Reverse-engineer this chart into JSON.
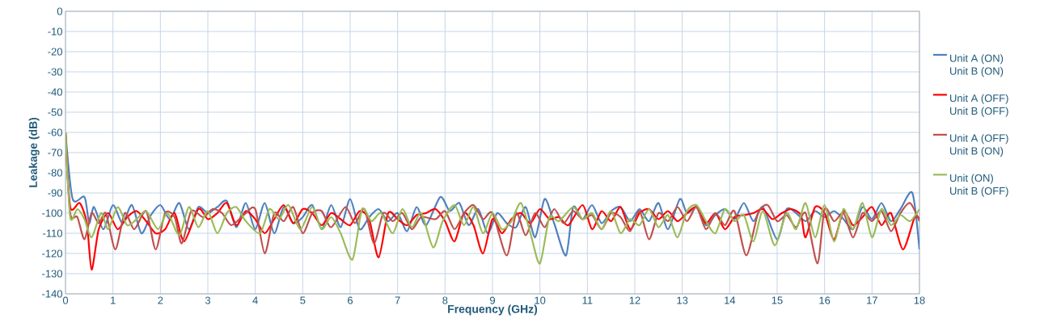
{
  "chart_data": {
    "type": "line",
    "xlabel": "Frequency (GHz)",
    "ylabel": "Leakage (dB)",
    "xlim": [
      0,
      18
    ],
    "xticks": [
      0,
      1,
      2,
      3,
      4,
      5,
      6,
      7,
      8,
      9,
      10,
      11,
      12,
      13,
      14,
      15,
      16,
      17,
      18
    ],
    "ylim": [
      -140,
      0
    ],
    "yticks": [
      -140,
      -130,
      -120,
      -110,
      -100,
      -90,
      -80,
      -70,
      -60,
      -50,
      -40,
      -30,
      -20,
      -10,
      0
    ],
    "grid": true,
    "legend": "right",
    "marker": "none",
    "line_style": "solid",
    "series": [
      {
        "name": "Unit A (ON) Unit B (ON)",
        "color": "#4f81bd",
        "x": [
          0,
          0.15,
          0.4,
          0.5,
          0.6,
          0.8,
          1.0,
          1.2,
          1.4,
          1.6,
          1.8,
          2.0,
          2.2,
          2.4,
          2.6,
          2.8,
          3.0,
          3.2,
          3.4,
          3.6,
          3.8,
          4.0,
          4.2,
          4.4,
          4.6,
          4.8,
          5.0,
          5.2,
          5.4,
          5.6,
          5.8,
          6.0,
          6.2,
          6.4,
          6.6,
          6.8,
          7.0,
          7.2,
          7.4,
          7.6,
          7.9,
          8.1,
          8.3,
          8.5,
          8.7,
          8.9,
          9.1,
          9.3,
          9.5,
          9.7,
          9.9,
          10.1,
          10.3,
          10.55,
          10.7,
          10.9,
          11.1,
          11.3,
          11.5,
          11.7,
          11.9,
          12.1,
          12.3,
          12.5,
          12.7,
          12.95,
          13.1,
          13.3,
          13.5,
          13.7,
          13.9,
          14.1,
          14.3,
          14.5,
          14.7,
          15.0,
          15.2,
          15.4,
          15.6,
          15.8,
          16.0,
          16.2,
          16.4,
          16.6,
          16.8,
          17.0,
          17.2,
          17.4,
          17.6,
          17.85,
          18.0
        ],
        "values": [
          -60,
          -93,
          -92,
          -105,
          -97,
          -108,
          -96,
          -105,
          -96,
          -110,
          -101,
          -96,
          -103,
          -95,
          -108,
          -97,
          -100,
          -97,
          -94,
          -107,
          -95,
          -108,
          -95,
          -110,
          -97,
          -105,
          -102,
          -96,
          -108,
          -96,
          -107,
          -93,
          -108,
          -102,
          -98,
          -104,
          -100,
          -109,
          -97,
          -106,
          -92,
          -99,
          -95,
          -106,
          -98,
          -110,
          -100,
          -105,
          -107,
          -97,
          -112,
          -93,
          -105,
          -121,
          -97,
          -103,
          -96,
          -105,
          -99,
          -97,
          -104,
          -98,
          -104,
          -95,
          -108,
          -93,
          -100,
          -97,
          -106,
          -101,
          -98,
          -103,
          -95,
          -104,
          -97,
          -113,
          -98,
          -100,
          -104,
          -99,
          -102,
          -99,
          -103,
          -108,
          -97,
          -103,
          -95,
          -104,
          -98,
          -90,
          -118
        ]
      },
      {
        "name": "Unit A (OFF) Unit B (OFF)",
        "color": "#ff0000",
        "x": [
          0,
          0.1,
          0.3,
          0.45,
          0.55,
          0.7,
          0.9,
          1.1,
          1.3,
          1.5,
          1.7,
          1.9,
          2.1,
          2.3,
          2.5,
          2.8,
          3.0,
          3.2,
          3.4,
          3.6,
          3.8,
          4.0,
          4.2,
          4.4,
          4.6,
          4.8,
          5.0,
          5.2,
          5.4,
          5.6,
          5.8,
          6.0,
          6.2,
          6.4,
          6.6,
          6.8,
          7.0,
          7.2,
          7.4,
          7.6,
          7.8,
          8.0,
          8.2,
          8.4,
          8.6,
          8.8,
          9.0,
          9.2,
          9.4,
          9.6,
          9.8,
          10.0,
          10.2,
          10.4,
          10.6,
          10.9,
          11.1,
          11.3,
          11.5,
          11.7,
          11.9,
          12.1,
          12.3,
          12.5,
          12.7,
          12.9,
          13.1,
          13.3,
          13.5,
          13.7,
          13.9,
          14.1,
          14.3,
          14.5,
          14.7,
          14.9,
          15.1,
          15.3,
          15.5,
          15.6,
          15.8,
          16.0,
          16.2,
          16.4,
          16.6,
          16.8,
          17.0,
          17.2,
          17.4,
          17.65,
          17.9,
          18.0
        ],
        "values": [
          -60,
          -97,
          -95,
          -105,
          -128,
          -108,
          -100,
          -108,
          -102,
          -99,
          -104,
          -110,
          -108,
          -100,
          -114,
          -98,
          -103,
          -100,
          -95,
          -106,
          -99,
          -103,
          -110,
          -103,
          -96,
          -105,
          -98,
          -100,
          -106,
          -100,
          -103,
          -106,
          -99,
          -103,
          -122,
          -100,
          -103,
          -106,
          -101,
          -100,
          -98,
          -104,
          -114,
          -100,
          -106,
          -120,
          -103,
          -110,
          -103,
          -100,
          -105,
          -98,
          -103,
          -102,
          -106,
          -96,
          -108,
          -99,
          -104,
          -97,
          -108,
          -100,
          -98,
          -103,
          -99,
          -104,
          -100,
          -97,
          -105,
          -100,
          -108,
          -102,
          -101,
          -100,
          -98,
          -103,
          -100,
          -98,
          -101,
          -112,
          -97,
          -100,
          -113,
          -99,
          -106,
          -102,
          -97,
          -106,
          -100,
          -118,
          -102,
          -103
        ]
      },
      {
        "name": "Unit A (OFF) Unit B (ON)",
        "color": "#c0504d",
        "x": [
          0,
          0.1,
          0.25,
          0.4,
          0.55,
          0.7,
          0.85,
          1.05,
          1.25,
          1.45,
          1.7,
          1.9,
          2.1,
          2.3,
          2.45,
          2.65,
          2.9,
          3.1,
          3.3,
          3.5,
          3.8,
          4.0,
          4.2,
          4.4,
          4.6,
          4.8,
          5.0,
          5.2,
          5.4,
          5.6,
          5.9,
          6.1,
          6.3,
          6.5,
          6.7,
          6.9,
          7.1,
          7.3,
          7.5,
          7.8,
          8.0,
          8.2,
          8.4,
          8.6,
          8.8,
          9.0,
          9.3,
          9.5,
          9.7,
          9.9,
          10.1,
          10.3,
          10.5,
          10.7,
          10.9,
          11.1,
          11.3,
          11.5,
          11.7,
          11.9,
          12.1,
          12.3,
          12.5,
          12.7,
          12.9,
          13.1,
          13.3,
          13.5,
          13.7,
          13.9,
          14.1,
          14.35,
          14.6,
          14.8,
          15.0,
          15.2,
          15.4,
          15.6,
          15.85,
          16.0,
          16.2,
          16.4,
          16.6,
          16.8,
          17.0,
          17.2,
          17.4,
          17.6,
          17.8,
          18.0
        ],
        "values": [
          -60,
          -100,
          -102,
          -113,
          -100,
          -105,
          -100,
          -118,
          -100,
          -108,
          -99,
          -118,
          -100,
          -102,
          -115,
          -99,
          -102,
          -98,
          -100,
          -106,
          -100,
          -98,
          -120,
          -100,
          -104,
          -97,
          -110,
          -100,
          -99,
          -107,
          -97,
          -105,
          -98,
          -115,
          -100,
          -104,
          -100,
          -108,
          -102,
          -103,
          -99,
          -108,
          -100,
          -96,
          -103,
          -100,
          -121,
          -100,
          -111,
          -100,
          -107,
          -98,
          -105,
          -99,
          -103,
          -101,
          -108,
          -100,
          -102,
          -109,
          -99,
          -113,
          -100,
          -104,
          -97,
          -104,
          -97,
          -108,
          -100,
          -106,
          -99,
          -121,
          -100,
          -96,
          -104,
          -101,
          -107,
          -100,
          -125,
          -98,
          -104,
          -100,
          -112,
          -100,
          -104,
          -99,
          -109,
          -100,
          -95,
          -104
        ]
      },
      {
        "name": "Unit (ON) Unit B (OFF)",
        "color": "#9bbb59",
        "x": [
          0,
          0.1,
          0.25,
          0.4,
          0.55,
          0.75,
          0.9,
          1.1,
          1.3,
          1.5,
          1.7,
          1.95,
          2.15,
          2.4,
          2.6,
          2.8,
          3.0,
          3.2,
          3.4,
          3.6,
          3.8,
          4.1,
          4.3,
          4.5,
          4.7,
          4.95,
          5.2,
          5.4,
          5.6,
          5.8,
          6.05,
          6.25,
          6.45,
          6.65,
          6.9,
          7.1,
          7.3,
          7.5,
          7.75,
          7.95,
          8.2,
          8.4,
          8.6,
          8.8,
          9.0,
          9.2,
          9.4,
          9.6,
          9.8,
          10.0,
          10.2,
          10.4,
          10.7,
          10.9,
          11.1,
          11.3,
          11.5,
          11.7,
          11.9,
          12.1,
          12.3,
          12.5,
          12.7,
          12.9,
          13.1,
          13.3,
          13.5,
          13.7,
          13.9,
          14.1,
          14.3,
          14.5,
          14.7,
          14.95,
          15.2,
          15.4,
          15.6,
          15.8,
          16.0,
          16.2,
          16.4,
          16.6,
          16.8,
          17.0,
          17.2,
          17.4,
          17.6,
          17.8,
          18.0
        ],
        "values": [
          -60,
          -102,
          -98,
          -103,
          -112,
          -100,
          -108,
          -97,
          -106,
          -103,
          -99,
          -108,
          -100,
          -111,
          -97,
          -107,
          -99,
          -110,
          -100,
          -97,
          -104,
          -110,
          -98,
          -103,
          -96,
          -108,
          -97,
          -108,
          -102,
          -110,
          -123,
          -98,
          -104,
          -100,
          -110,
          -98,
          -107,
          -100,
          -117,
          -104,
          -96,
          -106,
          -97,
          -110,
          -100,
          -108,
          -104,
          -95,
          -110,
          -125,
          -102,
          -104,
          -97,
          -103,
          -100,
          -108,
          -99,
          -110,
          -103,
          -106,
          -98,
          -107,
          -101,
          -112,
          -99,
          -96,
          -104,
          -110,
          -98,
          -104,
          -101,
          -114,
          -99,
          -116,
          -100,
          -108,
          -95,
          -112,
          -96,
          -114,
          -98,
          -108,
          -95,
          -112,
          -98,
          -106,
          -101,
          -104,
          -98
        ]
      }
    ]
  }
}
